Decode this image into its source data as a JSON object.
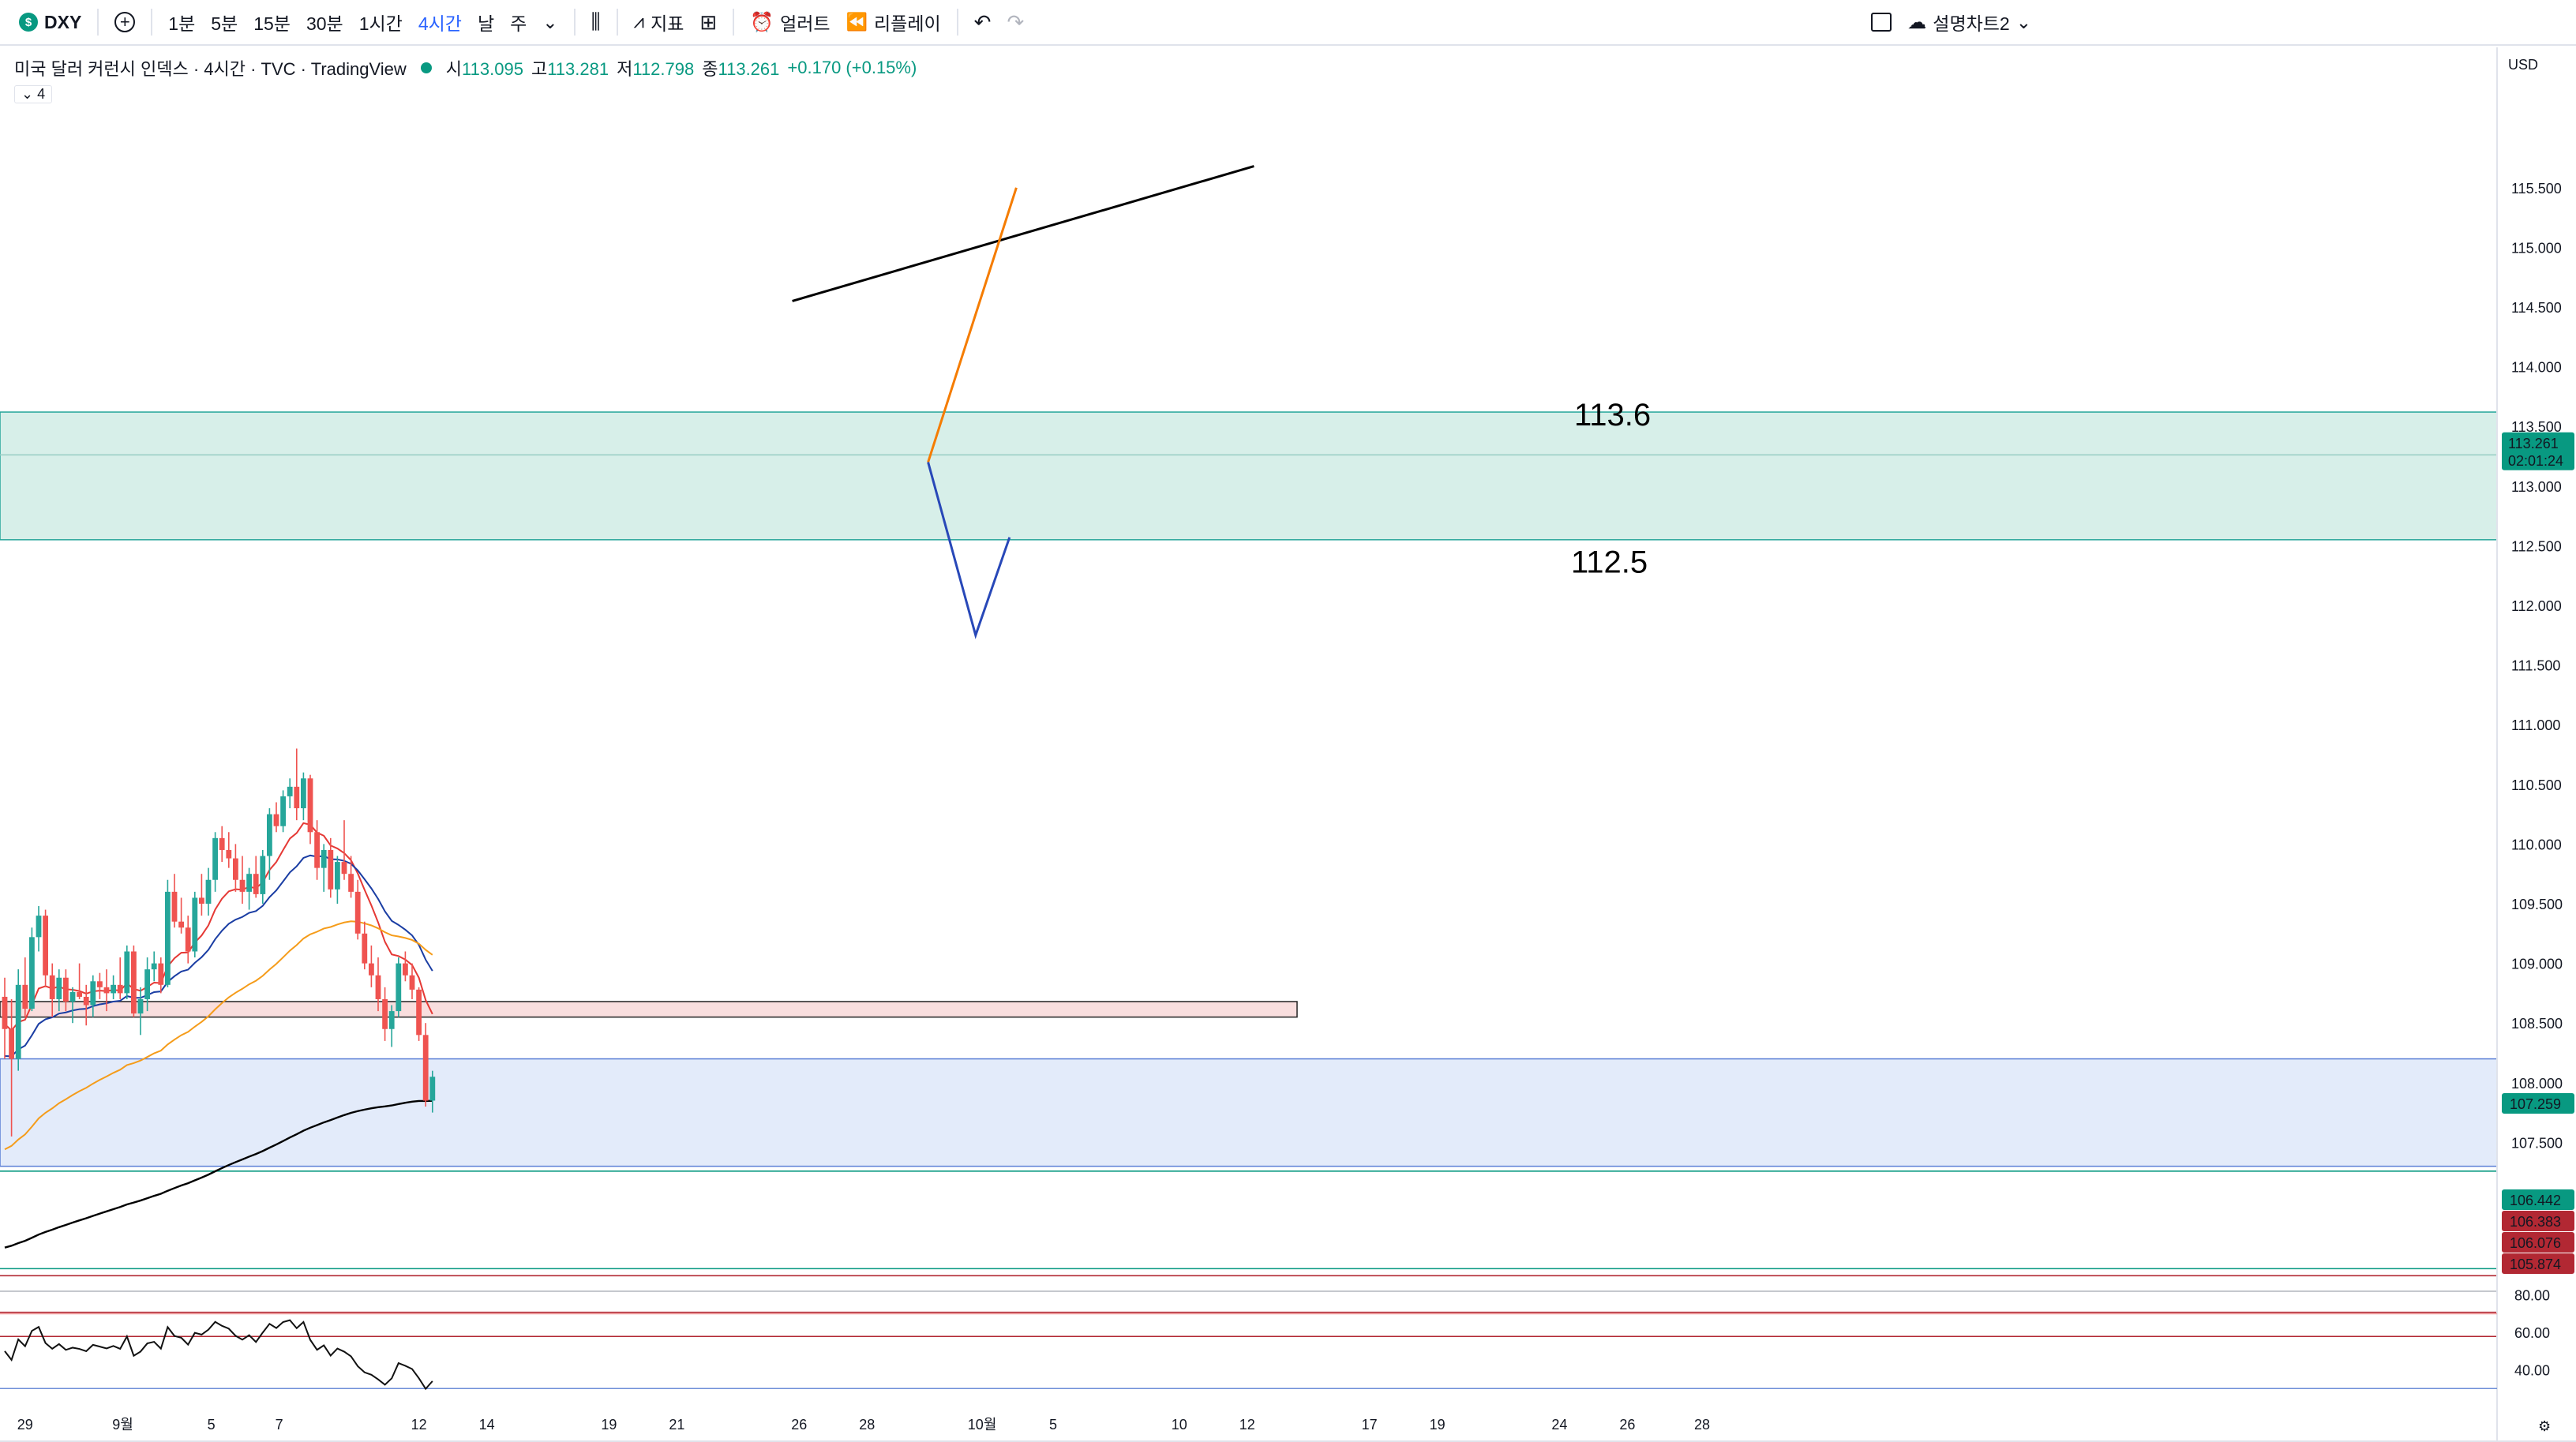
{
  "toolbar": {
    "symbol": "DXY",
    "symbol_badge": "$",
    "intervals": [
      "1분",
      "5분",
      "15분",
      "30분",
      "1시간",
      "4시간",
      "날",
      "주"
    ],
    "active_interval": "4시간",
    "indicators_label": "지표",
    "alert_label": "얼러트",
    "replay_label": "리플레이",
    "layout_name": "설명차트2"
  },
  "legend": {
    "title": "미국 달러 커런시 인덱스 · 4시간 · TVC · TradingView",
    "open_label": "시",
    "open": "113.095",
    "high_label": "고",
    "high": "113.281",
    "low_label": "저",
    "low": "112.798",
    "close_label": "종",
    "close": "113.261",
    "change": "+0.170 (+0.15%)",
    "indicator_count": "4"
  },
  "price_axis": {
    "currency": "USD",
    "last_price": "113.261",
    "countdown": "02:01:24",
    "tags": [
      {
        "value": "107.259",
        "color": "#089981"
      },
      {
        "value": "106.442",
        "color": "#089981"
      },
      {
        "value": "106.383",
        "color": "#b22833"
      },
      {
        "value": "106.076",
        "color": "#b22833"
      },
      {
        "value": "105.874",
        "color": "#b22833"
      }
    ]
  },
  "annotations": {
    "upper_level": "113.6",
    "lower_level": "112.5"
  },
  "rsi_axis": [
    "80.00",
    "60.00",
    "40.00"
  ],
  "chart_data": {
    "type": "candlestick",
    "timeframe": "4h",
    "ylim": [
      106.8,
      115.85
    ],
    "y_ticks": [
      115.5,
      115.0,
      114.5,
      114.0,
      113.5,
      113.0,
      112.5,
      112.0,
      111.5,
      111.0,
      110.5,
      110.0,
      109.5,
      109.0,
      108.5,
      108.0,
      107.5,
      107.0
    ],
    "x_labels": [
      {
        "bar": 3,
        "label": "29"
      },
      {
        "bar": 17,
        "label": "9월"
      },
      {
        "bar": 31,
        "label": "5"
      },
      {
        "bar": 41,
        "label": "7"
      },
      {
        "bar": 61,
        "label": "12"
      },
      {
        "bar": 71,
        "label": "14"
      },
      {
        "bar": 89,
        "label": "19"
      },
      {
        "bar": 99,
        "label": "21"
      },
      {
        "bar": 117,
        "label": "26"
      },
      {
        "bar": 127,
        "label": "28"
      },
      {
        "bar": 143,
        "label": "10월"
      },
      {
        "bar": 155,
        "label": "5"
      },
      {
        "bar": 173,
        "label": "10"
      },
      {
        "bar": 183,
        "label": "12"
      },
      {
        "bar": 201,
        "label": "17"
      },
      {
        "bar": 211,
        "label": "19"
      },
      {
        "bar": 229,
        "label": "24"
      },
      {
        "bar": 239,
        "label": "26"
      },
      {
        "bar": 250,
        "label": "28"
      }
    ],
    "candles": [
      [
        108.72,
        108.88,
        108.2,
        108.45
      ],
      [
        108.45,
        108.7,
        107.55,
        108.2
      ],
      [
        108.2,
        108.95,
        108.1,
        108.82
      ],
      [
        108.82,
        109.05,
        108.55,
        108.62
      ],
      [
        108.62,
        109.3,
        108.6,
        109.22
      ],
      [
        109.22,
        109.48,
        109.1,
        109.4
      ],
      [
        109.4,
        109.45,
        108.8,
        108.9
      ],
      [
        108.9,
        109.0,
        108.55,
        108.7
      ],
      [
        108.7,
        108.95,
        108.6,
        108.88
      ],
      [
        108.88,
        108.95,
        108.6,
        108.68
      ],
      [
        108.68,
        108.8,
        108.5,
        108.76
      ],
      [
        108.76,
        109.0,
        108.7,
        108.72
      ],
      [
        108.72,
        108.82,
        108.48,
        108.65
      ],
      [
        108.65,
        108.9,
        108.55,
        108.85
      ],
      [
        108.85,
        108.92,
        108.7,
        108.8
      ],
      [
        108.8,
        108.95,
        108.6,
        108.75
      ],
      [
        108.75,
        108.9,
        108.7,
        108.82
      ],
      [
        108.82,
        109.05,
        108.7,
        108.75
      ],
      [
        108.75,
        109.15,
        108.7,
        109.1
      ],
      [
        109.1,
        109.15,
        108.55,
        108.58
      ],
      [
        108.58,
        108.8,
        108.4,
        108.7
      ],
      [
        108.7,
        109.05,
        108.6,
        108.95
      ],
      [
        108.95,
        109.1,
        108.85,
        109.0
      ],
      [
        109.0,
        109.05,
        108.75,
        108.82
      ],
      [
        108.82,
        109.7,
        108.8,
        109.6
      ],
      [
        109.6,
        109.75,
        109.3,
        109.35
      ],
      [
        109.35,
        109.55,
        109.25,
        109.3
      ],
      [
        109.3,
        109.4,
        109.0,
        109.1
      ],
      [
        109.1,
        109.6,
        109.05,
        109.55
      ],
      [
        109.55,
        109.75,
        109.4,
        109.5
      ],
      [
        109.5,
        109.8,
        109.4,
        109.7
      ],
      [
        109.7,
        110.1,
        109.6,
        110.05
      ],
      [
        110.05,
        110.15,
        109.85,
        109.95
      ],
      [
        109.95,
        110.1,
        109.8,
        109.88
      ],
      [
        109.88,
        110.0,
        109.6,
        109.7
      ],
      [
        109.7,
        109.9,
        109.5,
        109.6
      ],
      [
        109.6,
        109.8,
        109.45,
        109.75
      ],
      [
        109.75,
        109.9,
        109.55,
        109.58
      ],
      [
        109.58,
        109.95,
        109.5,
        109.9
      ],
      [
        109.9,
        110.3,
        109.7,
        110.25
      ],
      [
        110.25,
        110.35,
        110.1,
        110.15
      ],
      [
        110.15,
        110.45,
        110.1,
        110.4
      ],
      [
        110.4,
        110.55,
        110.3,
        110.48
      ],
      [
        110.48,
        110.8,
        110.2,
        110.3
      ],
      [
        110.3,
        110.6,
        110.2,
        110.55
      ],
      [
        110.55,
        110.58,
        110.0,
        110.1
      ],
      [
        110.1,
        110.2,
        109.7,
        109.8
      ],
      [
        109.8,
        110.0,
        109.6,
        109.95
      ],
      [
        109.95,
        110.05,
        109.55,
        109.62
      ],
      [
        109.62,
        109.9,
        109.5,
        109.85
      ],
      [
        109.85,
        110.2,
        109.7,
        109.75
      ],
      [
        109.75,
        109.9,
        109.55,
        109.6
      ],
      [
        109.6,
        109.7,
        109.2,
        109.25
      ],
      [
        109.25,
        109.35,
        108.95,
        109.0
      ],
      [
        109.0,
        109.15,
        108.8,
        108.9
      ],
      [
        108.9,
        109.05,
        108.6,
        108.7
      ],
      [
        108.7,
        108.8,
        108.35,
        108.45
      ],
      [
        108.45,
        108.65,
        108.3,
        108.6
      ],
      [
        108.6,
        109.05,
        108.55,
        109.0
      ],
      [
        109.0,
        109.1,
        108.85,
        108.9
      ],
      [
        108.9,
        109.0,
        108.7,
        108.78
      ],
      [
        108.78,
        108.8,
        108.35,
        108.4
      ],
      [
        108.4,
        108.5,
        107.8,
        107.85
      ],
      [
        107.85,
        108.1,
        107.75,
        108.05
      ]
    ],
    "series": [
      {
        "name": "EMA 10",
        "color": "#e53935"
      },
      {
        "name": "EMA 20",
        "color": "#1a3da3"
      },
      {
        "name": "EMA 50",
        "color": "#f59c1a"
      },
      {
        "name": "EMA 200",
        "color": "#000000"
      }
    ],
    "zones": [
      {
        "from": 112.55,
        "to": 113.62,
        "color": "#d7efe9"
      },
      {
        "from": 107.3,
        "to": 108.2,
        "color": "#e3ebfa"
      },
      {
        "from": 108.55,
        "to": 108.68,
        "color": "#f9dede"
      }
    ],
    "projection": {
      "resistance": {
        "from": [
          116,
          114.55
        ],
        "to": [
          184,
          115.68
        ]
      },
      "bull_path": [
        [
          136,
          113.2
        ],
        [
          149,
          115.5
        ]
      ],
      "bear_path": [
        [
          136,
          113.2
        ],
        [
          143,
          111.75
        ],
        [
          148,
          112.57
        ]
      ]
    },
    "rsi": {
      "upper": 70,
      "lower": 30,
      "ylim": [
        28,
        82
      ]
    }
  }
}
